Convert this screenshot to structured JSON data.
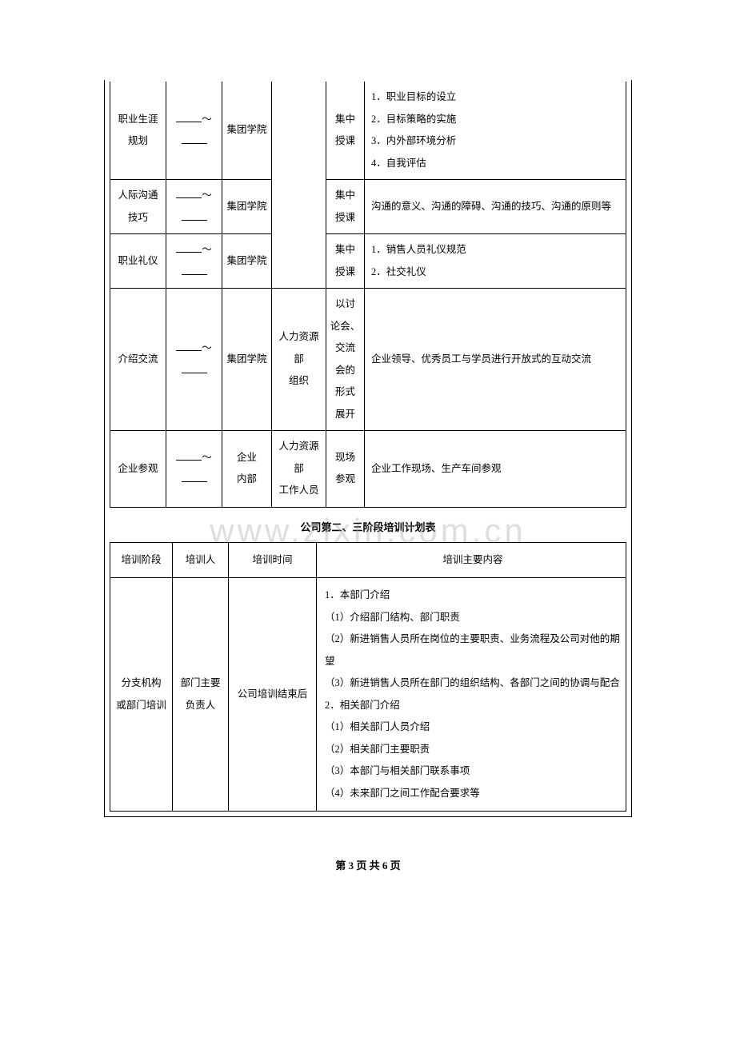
{
  "top_table": {
    "merged_col4": "",
    "rows": [
      {
        "topic_lines": [
          "职业生涯",
          "规划"
        ],
        "org": "集团学院",
        "mode_lines": [
          "集中",
          "授课"
        ],
        "content": "1．职业目标的设立\n2．目标策略的实施\n3．内外部环境分析\n4．自我评估"
      },
      {
        "topic_lines": [
          "人际沟通",
          "技巧"
        ],
        "org": "集团学院",
        "mode_lines": [
          "集中",
          "授课"
        ],
        "content": "沟通的意义、沟通的障碍、沟通的技巧、沟通的原则等"
      },
      {
        "topic_lines": [
          "职业礼仪"
        ],
        "org": "集团学院",
        "mode_lines": [
          "集中",
          "授课"
        ],
        "content": "1．销售人员礼仪规范\n2．社交礼仪"
      },
      {
        "topic_lines": [
          "介绍交流"
        ],
        "org": "集团学院",
        "dept_lines": [
          "人力资源部",
          "组织"
        ],
        "mode_lines": [
          "以讨",
          "论会、",
          "交流",
          "会的",
          "形式",
          "展开"
        ],
        "content": "企业领导、优秀员工与学员进行开放式的互动交流"
      },
      {
        "topic_lines": [
          "企业参观"
        ],
        "org_lines": [
          "企业",
          "内部"
        ],
        "dept_lines": [
          "人力资源部",
          "工作人员"
        ],
        "mode_lines": [
          "现场",
          "参观"
        ],
        "content": "企业工作现场、生产车间参观"
      }
    ]
  },
  "section_title": "公司第二、三阶段培训计划表",
  "sub_table": {
    "headers": [
      "培训阶段",
      "培训人",
      "培训时间",
      "培训主要内容"
    ],
    "row": {
      "phase_lines": [
        "分支机构",
        "或部门培训"
      ],
      "trainer_lines": [
        "部门主要",
        "负责人"
      ],
      "time": "公司培训结束后",
      "content": "1．本部门介绍\n（1）介绍部门结构、部门职责\n（2）新进销售人员所在岗位的主要职责、业务流程及公司对他的期望\n（3）新进销售人员所在部门的组织结构、各部门之间的协调与配合\n2．相关部门介绍\n（1）相关部门人员介绍\n（2）相关部门主要职责\n（3）本部门与相关部门联系事项\n（4）未来部门之间工作配合要求等"
    }
  },
  "footer": "第 3 页 共 6 页",
  "watermark": "www.zixin.com.cn",
  "time_sep": "～"
}
